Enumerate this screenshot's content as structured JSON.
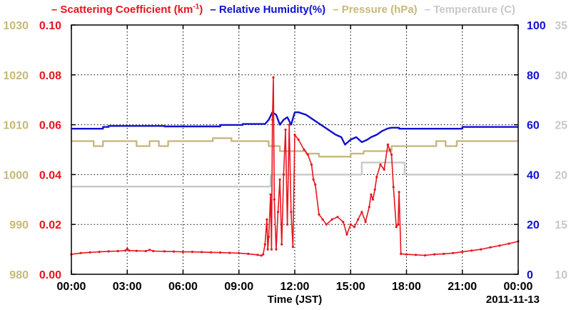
{
  "colors": {
    "scattering": "#e8141e",
    "humidity": "#1010d0",
    "pressure": "#c8b878",
    "temperature": "#c8c8c8",
    "axis": "#000000",
    "grid": "#000000"
  },
  "legend": [
    {
      "key": "scattering",
      "text": "– Scattering Coefficient (km",
      "sup": "-1",
      "tail": ")"
    },
    {
      "key": "humidity",
      "text": "– Relative Humidity(%)",
      "sup": "",
      "tail": ""
    },
    {
      "key": "pressure",
      "text": "– Pressure (hPa)",
      "sup": "",
      "tail": ""
    },
    {
      "key": "temperature",
      "text": "– Temperature (C)",
      "sup": "",
      "tail": ""
    }
  ],
  "chart_data": {
    "type": "line",
    "xlabel": "Time (JST)",
    "date_label": "2011-11-13",
    "x_ticks": [
      "00:00",
      "03:00",
      "06:00",
      "09:00",
      "12:00",
      "15:00",
      "18:00",
      "21:00",
      "00:00"
    ],
    "xlim": [
      0,
      24
    ],
    "axes": {
      "pressure": {
        "ticks": [
          "980",
          "990",
          "1000",
          "1010",
          "1020",
          "1030"
        ],
        "ylim": [
          980,
          1030
        ]
      },
      "scattering": {
        "ticks": [
          "0.00",
          "0.02",
          "0.04",
          "0.06",
          "0.08",
          "0.10"
        ],
        "ylim": [
          0,
          0.1
        ]
      },
      "humidity": {
        "ticks": [
          "0",
          "20",
          "40",
          "60",
          "80",
          "100"
        ],
        "ylim": [
          0,
          100
        ]
      },
      "temperature": {
        "ticks": [
          "10",
          "15",
          "20",
          "25",
          "30",
          "35"
        ],
        "ylim": [
          10,
          35
        ]
      }
    },
    "grid": true,
    "series": [
      {
        "key": "temperature",
        "axis": "temperature",
        "step": true,
        "points": [
          [
            0,
            18.8
          ],
          [
            10.7,
            18.8
          ],
          [
            10.7,
            20
          ],
          [
            15.6,
            20
          ],
          [
            15.6,
            21.2
          ],
          [
            17.9,
            21.2
          ],
          [
            17.9,
            20
          ],
          [
            24,
            20
          ]
        ]
      },
      {
        "key": "pressure",
        "axis": "pressure",
        "step": true,
        "points": [
          [
            0,
            1006.7
          ],
          [
            1.2,
            1006.7
          ],
          [
            1.2,
            1005.7
          ],
          [
            1.7,
            1005.7
          ],
          [
            1.7,
            1006.7
          ],
          [
            3.5,
            1006.7
          ],
          [
            3.5,
            1005.7
          ],
          [
            4.2,
            1005.7
          ],
          [
            4.2,
            1006.7
          ],
          [
            4.7,
            1006.7
          ],
          [
            4.7,
            1005.7
          ],
          [
            5.2,
            1005.7
          ],
          [
            5.2,
            1006.7
          ],
          [
            7.6,
            1006.7
          ],
          [
            7.6,
            1007.3
          ],
          [
            8.6,
            1007.3
          ],
          [
            8.6,
            1006.7
          ],
          [
            10.6,
            1006.7
          ],
          [
            10.6,
            1005.7
          ],
          [
            11.2,
            1005.7
          ],
          [
            11.2,
            1004.7
          ],
          [
            12.6,
            1004.7
          ],
          [
            12.6,
            1004.2
          ],
          [
            13.3,
            1004.2
          ],
          [
            13.3,
            1003.6
          ],
          [
            15.0,
            1003.6
          ],
          [
            15.0,
            1004.2
          ],
          [
            15.7,
            1004.2
          ],
          [
            15.7,
            1004.7
          ],
          [
            17.2,
            1004.7
          ],
          [
            17.2,
            1005.7
          ],
          [
            19.6,
            1005.7
          ],
          [
            19.6,
            1006.7
          ],
          [
            20.1,
            1006.7
          ],
          [
            20.1,
            1005.7
          ],
          [
            20.7,
            1005.7
          ],
          [
            20.7,
            1006.7
          ],
          [
            24,
            1006.7
          ]
        ]
      },
      {
        "key": "humidity",
        "axis": "humidity",
        "step": false,
        "points": [
          [
            0,
            58.4
          ],
          [
            1.7,
            58.4
          ],
          [
            1.7,
            59.1
          ],
          [
            2.0,
            59.1
          ],
          [
            2.0,
            59.5
          ],
          [
            5.0,
            59.5
          ],
          [
            5.0,
            59.3
          ],
          [
            8.0,
            59.3
          ],
          [
            8.0,
            59.9
          ],
          [
            9.2,
            59.9
          ],
          [
            9.2,
            60.3
          ],
          [
            10.4,
            60.3
          ],
          [
            10.6,
            62
          ],
          [
            10.8,
            65
          ],
          [
            11.0,
            64
          ],
          [
            11.2,
            60
          ],
          [
            11.4,
            62
          ],
          [
            11.6,
            63
          ],
          [
            11.8,
            60
          ],
          [
            12.0,
            65
          ],
          [
            12.2,
            65
          ],
          [
            12.6,
            64
          ],
          [
            13.0,
            62
          ],
          [
            13.4,
            60
          ],
          [
            13.8,
            58
          ],
          [
            14.2,
            56
          ],
          [
            14.5,
            55
          ],
          [
            14.7,
            52
          ],
          [
            15.0,
            54
          ],
          [
            15.3,
            55
          ],
          [
            15.6,
            53
          ],
          [
            15.9,
            54
          ],
          [
            16.1,
            55
          ],
          [
            16.4,
            56
          ],
          [
            16.7,
            57.5
          ],
          [
            17.0,
            58.5
          ],
          [
            17.2,
            58.8
          ],
          [
            17.6,
            58.8
          ],
          [
            17.6,
            58.4
          ],
          [
            21.0,
            58.4
          ],
          [
            21.0,
            59.1
          ],
          [
            24,
            59.1
          ]
        ]
      },
      {
        "key": "scattering",
        "axis": "scattering",
        "step": false,
        "markers": true,
        "points": [
          [
            0,
            0.008
          ],
          [
            0.5,
            0.0085
          ],
          [
            1.0,
            0.0088
          ],
          [
            1.5,
            0.009
          ],
          [
            2.0,
            0.0092
          ],
          [
            2.5,
            0.0093
          ],
          [
            2.9,
            0.0095
          ],
          [
            3.0,
            0.0102
          ],
          [
            3.1,
            0.0095
          ],
          [
            3.5,
            0.0094
          ],
          [
            4.0,
            0.0093
          ],
          [
            4.2,
            0.0098
          ],
          [
            4.4,
            0.0093
          ],
          [
            5.0,
            0.0092
          ],
          [
            5.5,
            0.0091
          ],
          [
            6.0,
            0.009
          ],
          [
            6.5,
            0.009
          ],
          [
            7.0,
            0.0089
          ],
          [
            7.5,
            0.0088
          ],
          [
            8.0,
            0.0087
          ],
          [
            8.5,
            0.0086
          ],
          [
            9.0,
            0.0085
          ],
          [
            9.5,
            0.0082
          ],
          [
            10.0,
            0.0078
          ],
          [
            10.2,
            0.0075
          ],
          [
            10.3,
            0.008
          ],
          [
            10.4,
            0.012
          ],
          [
            10.5,
            0.022
          ],
          [
            10.55,
            0.01
          ],
          [
            10.6,
            0.015
          ],
          [
            10.7,
            0.032
          ],
          [
            10.75,
            0.01
          ],
          [
            10.8,
            0.062
          ],
          [
            10.85,
            0.079
          ],
          [
            10.9,
            0.03
          ],
          [
            11.0,
            0.01
          ],
          [
            11.1,
            0.025
          ],
          [
            11.2,
            0.038
          ],
          [
            11.3,
            0.012
          ],
          [
            11.4,
            0.04
          ],
          [
            11.5,
            0.058
          ],
          [
            11.6,
            0.02
          ],
          [
            11.7,
            0.06
          ],
          [
            11.8,
            0.025
          ],
          [
            11.9,
            0.011
          ],
          [
            12.0,
            0.056
          ],
          [
            12.2,
            0.054
          ],
          [
            12.5,
            0.05
          ],
          [
            12.7,
            0.048
          ],
          [
            12.9,
            0.044
          ],
          [
            13.0,
            0.038
          ],
          [
            13.1,
            0.036
          ],
          [
            13.3,
            0.024
          ],
          [
            13.5,
            0.022
          ],
          [
            13.7,
            0.02
          ],
          [
            14.0,
            0.022
          ],
          [
            14.3,
            0.023
          ],
          [
            14.6,
            0.021
          ],
          [
            14.8,
            0.016
          ],
          [
            15.0,
            0.02
          ],
          [
            15.2,
            0.019
          ],
          [
            15.4,
            0.022
          ],
          [
            15.6,
            0.025
          ],
          [
            15.8,
            0.021
          ],
          [
            16.0,
            0.027
          ],
          [
            16.1,
            0.032
          ],
          [
            16.2,
            0.03
          ],
          [
            16.3,
            0.034
          ],
          [
            16.4,
            0.039
          ],
          [
            16.6,
            0.044
          ],
          [
            16.8,
            0.042
          ],
          [
            17.0,
            0.052
          ],
          [
            17.1,
            0.05
          ],
          [
            17.2,
            0.048
          ],
          [
            17.3,
            0.035
          ],
          [
            17.45,
            0.019
          ],
          [
            17.55,
            0.02
          ],
          [
            17.6,
            0.033
          ],
          [
            17.7,
            0.0082
          ],
          [
            18.0,
            0.008
          ],
          [
            18.5,
            0.0078
          ],
          [
            19.0,
            0.0076
          ],
          [
            19.5,
            0.008
          ],
          [
            20.0,
            0.0082
          ],
          [
            20.5,
            0.0085
          ],
          [
            21.0,
            0.009
          ],
          [
            21.5,
            0.0095
          ],
          [
            22.0,
            0.01
          ],
          [
            22.5,
            0.0108
          ],
          [
            23.0,
            0.0115
          ],
          [
            23.5,
            0.0123
          ],
          [
            24.0,
            0.0132
          ]
        ]
      }
    ]
  }
}
